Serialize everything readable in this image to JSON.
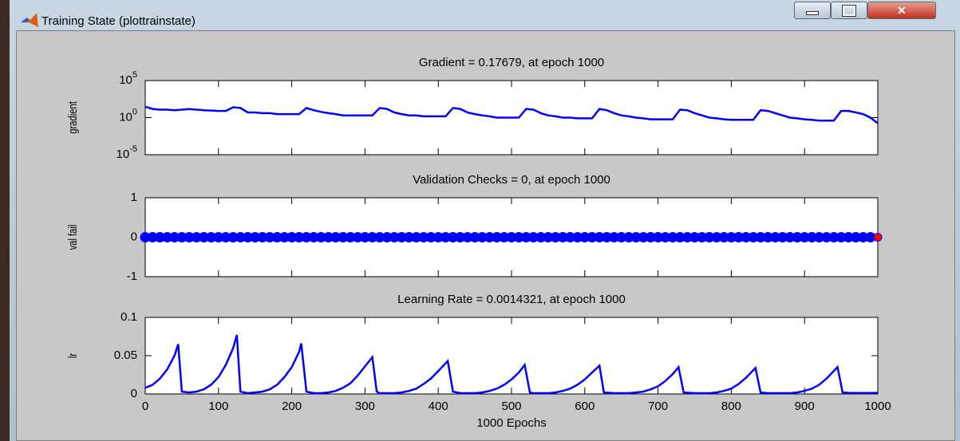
{
  "window": {
    "title": "Training State (plottrainstate)"
  },
  "chart_data": [
    {
      "type": "line",
      "title": "Gradient = 0.17679, at epoch 1000",
      "ylabel": "gradient",
      "log_y": true,
      "xlim": [
        0,
        1000
      ],
      "ylim": [
        1e-05,
        100000
      ],
      "yticks": [
        {
          "value": 1e-05,
          "label": "10^-5"
        },
        {
          "value": 1,
          "label": "10^0"
        },
        {
          "value": 100000,
          "label": "10^5"
        }
      ],
      "color": "#0000ff",
      "x": [
        0,
        10,
        20,
        30,
        40,
        50,
        60,
        70,
        80,
        90,
        100,
        110,
        120,
        130,
        140,
        150,
        160,
        170,
        180,
        190,
        200,
        210,
        220,
        230,
        240,
        250,
        260,
        270,
        280,
        290,
        300,
        310,
        320,
        330,
        340,
        350,
        360,
        370,
        380,
        390,
        400,
        410,
        420,
        430,
        440,
        450,
        460,
        470,
        480,
        490,
        500,
        510,
        520,
        530,
        540,
        550,
        560,
        570,
        580,
        590,
        600,
        610,
        620,
        630,
        640,
        650,
        660,
        670,
        680,
        690,
        700,
        710,
        720,
        730,
        740,
        750,
        760,
        770,
        780,
        790,
        800,
        810,
        820,
        830,
        840,
        850,
        860,
        870,
        880,
        890,
        900,
        910,
        920,
        930,
        940,
        950,
        960,
        970,
        980,
        990,
        1000
      ],
      "values": [
        30,
        15,
        12,
        12,
        10,
        12,
        14,
        12,
        10,
        9,
        8,
        8,
        25,
        20,
        5,
        5,
        4,
        4,
        3,
        3,
        3,
        3,
        20,
        10,
        6,
        4,
        3,
        2,
        2,
        2,
        2,
        2,
        20,
        15,
        5,
        3,
        2,
        2,
        1.5,
        1.5,
        1.5,
        1.5,
        20,
        15,
        5,
        3,
        2,
        1.5,
        1,
        1,
        1,
        1,
        15,
        12,
        4,
        2,
        1.5,
        1,
        1,
        0.8,
        0.8,
        0.8,
        15,
        10,
        4,
        2,
        1.5,
        1,
        0.8,
        0.6,
        0.6,
        0.6,
        0.6,
        12,
        10,
        4,
        2,
        1,
        0.8,
        0.6,
        0.5,
        0.5,
        0.5,
        0.5,
        10,
        8,
        4,
        2,
        1,
        0.8,
        0.6,
        0.5,
        0.4,
        0.4,
        0.4,
        8,
        8,
        5,
        3,
        1,
        0.17679
      ]
    },
    {
      "type": "scatter",
      "title": "Validation Checks = 0, at epoch 1000",
      "ylabel": "val fail",
      "xlim": [
        0,
        1000
      ],
      "ylim": [
        -1,
        1
      ],
      "yticks": [
        -1,
        0,
        1
      ],
      "color": "#0000ff",
      "last_color": "#ff0000",
      "x": [
        0,
        10,
        20,
        30,
        40,
        50,
        60,
        70,
        80,
        90,
        100,
        110,
        120,
        130,
        140,
        150,
        160,
        170,
        180,
        190,
        200,
        210,
        220,
        230,
        240,
        250,
        260,
        270,
        280,
        290,
        300,
        310,
        320,
        330,
        340,
        350,
        360,
        370,
        380,
        390,
        400,
        410,
        420,
        430,
        440,
        450,
        460,
        470,
        480,
        490,
        500,
        510,
        520,
        530,
        540,
        550,
        560,
        570,
        580,
        590,
        600,
        610,
        620,
        630,
        640,
        650,
        660,
        670,
        680,
        690,
        700,
        710,
        720,
        730,
        740,
        750,
        760,
        770,
        780,
        790,
        800,
        810,
        820,
        830,
        840,
        850,
        860,
        870,
        880,
        890,
        900,
        910,
        920,
        930,
        940,
        950,
        960,
        970,
        980,
        990,
        1000
      ],
      "values": [
        0,
        0,
        0,
        0,
        0,
        0,
        0,
        0,
        0,
        0,
        0,
        0,
        0,
        0,
        0,
        0,
        0,
        0,
        0,
        0,
        0,
        0,
        0,
        0,
        0,
        0,
        0,
        0,
        0,
        0,
        0,
        0,
        0,
        0,
        0,
        0,
        0,
        0,
        0,
        0,
        0,
        0,
        0,
        0,
        0,
        0,
        0,
        0,
        0,
        0,
        0,
        0,
        0,
        0,
        0,
        0,
        0,
        0,
        0,
        0,
        0,
        0,
        0,
        0,
        0,
        0,
        0,
        0,
        0,
        0,
        0,
        0,
        0,
        0,
        0,
        0,
        0,
        0,
        0,
        0,
        0,
        0,
        0,
        0,
        0,
        0,
        0,
        0,
        0,
        0,
        0,
        0,
        0,
        0,
        0,
        0,
        0,
        0,
        0,
        0,
        0
      ]
    },
    {
      "type": "line",
      "title": "Learning Rate = 0.0014321, at epoch 1000",
      "ylabel": "lr",
      "xlabel": "1000 Epochs",
      "xlim": [
        0,
        1000
      ],
      "ylim": [
        0,
        0.1
      ],
      "yticks": [
        0,
        0.05,
        0.1
      ],
      "xticks": [
        0,
        100,
        200,
        300,
        400,
        500,
        600,
        700,
        800,
        900,
        1000
      ],
      "color": "#0000ff",
      "x": [
        0,
        10,
        20,
        30,
        40,
        45,
        50,
        60,
        70,
        80,
        90,
        100,
        110,
        120,
        125,
        130,
        140,
        150,
        160,
        170,
        180,
        190,
        200,
        210,
        213,
        220,
        230,
        240,
        250,
        260,
        270,
        280,
        290,
        300,
        310,
        316,
        320,
        330,
        340,
        350,
        360,
        370,
        380,
        390,
        400,
        413,
        420,
        430,
        440,
        450,
        460,
        470,
        480,
        490,
        500,
        510,
        518,
        525,
        530,
        540,
        550,
        560,
        570,
        580,
        590,
        600,
        610,
        620,
        626,
        640,
        650,
        660,
        670,
        680,
        690,
        700,
        710,
        720,
        728,
        735,
        750,
        760,
        770,
        780,
        790,
        800,
        810,
        820,
        833,
        840,
        850,
        860,
        870,
        880,
        890,
        900,
        910,
        920,
        930,
        945,
        952,
        960,
        970,
        980,
        990,
        1000
      ],
      "values": [
        0.008,
        0.012,
        0.02,
        0.032,
        0.05,
        0.065,
        0.003,
        0.002,
        0.003,
        0.006,
        0.012,
        0.022,
        0.038,
        0.06,
        0.077,
        0.003,
        0.001,
        0.002,
        0.003,
        0.006,
        0.012,
        0.022,
        0.035,
        0.055,
        0.066,
        0.003,
        0.001,
        0.001,
        0.002,
        0.004,
        0.008,
        0.014,
        0.024,
        0.036,
        0.048,
        0.003,
        0.001,
        0.001,
        0.001,
        0.002,
        0.004,
        0.007,
        0.013,
        0.02,
        0.03,
        0.043,
        0.003,
        0.001,
        0.001,
        0.001,
        0.002,
        0.004,
        0.007,
        0.012,
        0.019,
        0.028,
        0.038,
        0.002,
        0.001,
        0.001,
        0.001,
        0.002,
        0.004,
        0.007,
        0.012,
        0.019,
        0.028,
        0.037,
        0.002,
        0.001,
        0.001,
        0.001,
        0.002,
        0.003,
        0.006,
        0.01,
        0.017,
        0.026,
        0.035,
        0.002,
        0.001,
        0.001,
        0.001,
        0.002,
        0.004,
        0.007,
        0.013,
        0.021,
        0.034,
        0.002,
        0.001,
        0.001,
        0.001,
        0.001,
        0.002,
        0.004,
        0.007,
        0.012,
        0.02,
        0.035,
        0.002,
        0.0015,
        0.0014,
        0.0014,
        0.0014,
        0.0014321
      ]
    }
  ]
}
